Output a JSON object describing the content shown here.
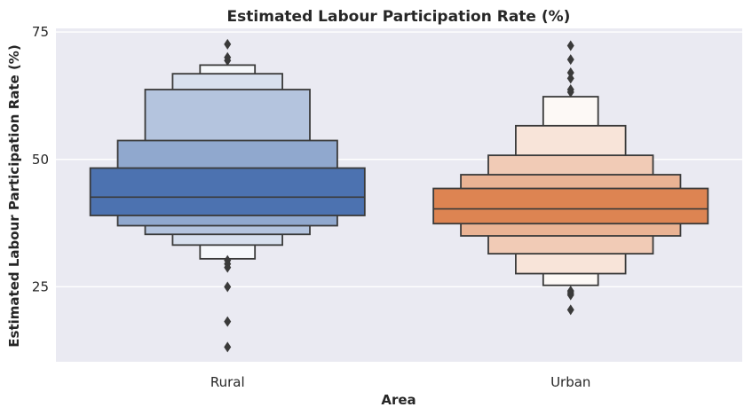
{
  "chart_data": {
    "type": "boxen",
    "title": "Estimated Labour Participation Rate (%)",
    "xlabel": "Area",
    "ylabel": "Estimated Labour Participation Rate (%)",
    "ylim": [
      10.3,
      75.7
    ],
    "yticks": [
      25,
      50,
      75
    ],
    "grid": true,
    "categories": [
      "Rural",
      "Urban"
    ],
    "colors": {
      "background": "#EAEAF2",
      "grid": "#FFFFFF",
      "edge": "#3A3A3A",
      "Rural": "#4C72B0",
      "Urban": "#DD8452"
    },
    "series": [
      {
        "category": "Rural",
        "median": 42.6,
        "boxes": [
          {
            "low": 39.0,
            "high": 48.3
          },
          {
            "low": 37.0,
            "high": 53.7
          },
          {
            "low": 35.3,
            "high": 63.7
          },
          {
            "low": 33.2,
            "high": 66.8
          },
          {
            "low": 30.5,
            "high": 68.5
          }
        ],
        "outliers": [
          72.6,
          70.0,
          69.4,
          30.2,
          29.5,
          28.8,
          25.0,
          18.2,
          13.2
        ]
      },
      {
        "category": "Urban",
        "median": 40.3,
        "boxes": [
          {
            "low": 37.4,
            "high": 44.3
          },
          {
            "low": 35.0,
            "high": 47.0
          },
          {
            "low": 31.5,
            "high": 50.8
          },
          {
            "low": 27.6,
            "high": 56.6
          },
          {
            "low": 25.3,
            "high": 62.3
          }
        ],
        "outliers": [
          72.3,
          69.6,
          67.0,
          65.9,
          63.7,
          63.2,
          24.2,
          23.8,
          23.4,
          20.5
        ]
      }
    ]
  }
}
